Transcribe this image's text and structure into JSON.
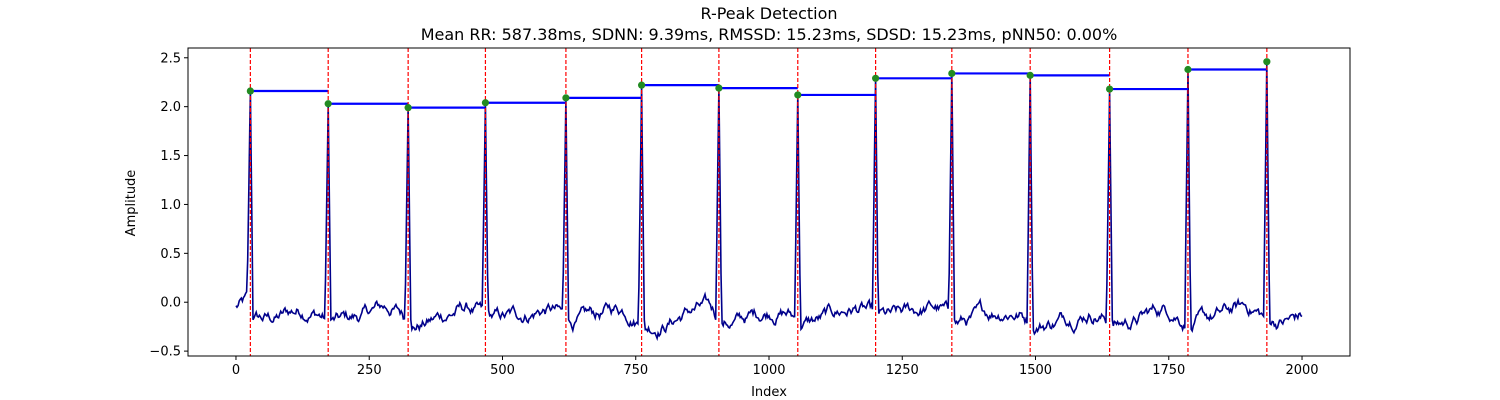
{
  "chart_data": {
    "type": "line",
    "title": "R-Peak Detection",
    "subtitle": "Mean RR: 587.38ms, SDNN: 9.39ms, RMSSD: 15.23ms, SDSD: 15.23ms, pNN50: 0.00%",
    "xlabel": "Index",
    "ylabel": "Amplitude",
    "xlim": [
      -90,
      2090
    ],
    "ylim": [
      -0.55,
      2.6
    ],
    "xticks": [
      0,
      250,
      500,
      750,
      1000,
      1250,
      1500,
      1750,
      2000
    ],
    "yticks": [
      -0.5,
      0.0,
      0.5,
      1.0,
      1.5,
      2.0,
      2.5
    ],
    "grid": false,
    "colors": {
      "signal": "#00008b",
      "peak_marker": "#228b22",
      "peak_line": "#ff0000",
      "rr_segment": "#0000ff"
    },
    "signal_x_range": [
      0,
      2000
    ],
    "peaks": {
      "x": [
        27,
        173,
        323,
        468,
        619,
        761,
        906,
        1054,
        1200,
        1343,
        1490,
        1639,
        1786,
        1934
      ],
      "y": [
        2.16,
        2.03,
        1.99,
        2.04,
        2.09,
        2.22,
        2.19,
        2.12,
        2.29,
        2.34,
        2.32,
        2.18,
        2.38,
        2.46
      ]
    }
  }
}
